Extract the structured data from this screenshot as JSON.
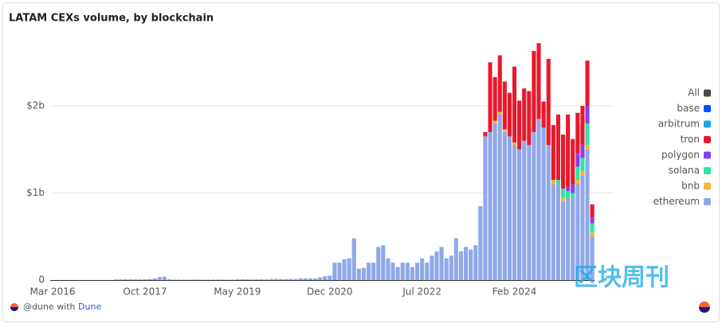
{
  "chart_data": {
    "type": "bar",
    "stacked": true,
    "title": "LATAM CEXs volume, by blockchain",
    "x": [
      "2016-03",
      "2016-04",
      "2016-05",
      "2016-06",
      "2016-07",
      "2016-08",
      "2016-09",
      "2016-10",
      "2016-11",
      "2016-12",
      "2017-01",
      "2017-02",
      "2017-03",
      "2017-04",
      "2017-05",
      "2017-06",
      "2017-07",
      "2017-08",
      "2017-09",
      "2017-10",
      "2017-11",
      "2017-12",
      "2018-01",
      "2018-02",
      "2018-03",
      "2018-04",
      "2018-05",
      "2018-06",
      "2018-07",
      "2018-08",
      "2018-09",
      "2018-10",
      "2018-11",
      "2018-12",
      "2019-01",
      "2019-02",
      "2019-03",
      "2019-04",
      "2019-05",
      "2019-06",
      "2019-07",
      "2019-08",
      "2019-09",
      "2019-10",
      "2019-11",
      "2019-12",
      "2020-01",
      "2020-02",
      "2020-03",
      "2020-04",
      "2020-05",
      "2020-06",
      "2020-07",
      "2020-08",
      "2020-09",
      "2020-10",
      "2020-11",
      "2020-12",
      "2021-01",
      "2021-02",
      "2021-03",
      "2021-04",
      "2021-05",
      "2021-06",
      "2021-07",
      "2021-08",
      "2021-09",
      "2021-10",
      "2021-11",
      "2021-12",
      "2022-01",
      "2022-02",
      "2022-03",
      "2022-04",
      "2022-05",
      "2022-06",
      "2022-07",
      "2022-08",
      "2022-09",
      "2022-10",
      "2022-11",
      "2022-12",
      "2023-01",
      "2023-02",
      "2023-03",
      "2023-04",
      "2023-05",
      "2023-06",
      "2023-07",
      "2023-08",
      "2023-09",
      "2023-10",
      "2023-11",
      "2023-12",
      "2024-01",
      "2024-02",
      "2024-03",
      "2024-04",
      "2024-05",
      "2024-06",
      "2024-07",
      "2024-08",
      "2024-09",
      "2024-10",
      "2024-11",
      "2024-12",
      "2025-01",
      "2025-02",
      "2025-03",
      "2025-04",
      "2025-05",
      "2025-06"
    ],
    "xticks": [
      {
        "value": "2016-03",
        "label": "Mar 2016"
      },
      {
        "value": "2017-10",
        "label": "Oct 2017"
      },
      {
        "value": "2019-05",
        "label": "May 2019"
      },
      {
        "value": "2020-12",
        "label": "Dec 2020"
      },
      {
        "value": "2022-07",
        "label": "Jul 2022"
      },
      {
        "value": "2024-02",
        "label": "Feb 2024"
      }
    ],
    "ylim": [
      0,
      2850000000.0
    ],
    "yticks": [
      0,
      {
        "value": 1000000000.0,
        "label": "$1b"
      },
      {
        "value": 2000000000.0,
        "label": "$2b"
      }
    ],
    "grid": true,
    "legend_position": "right",
    "legend_all": {
      "name": "All",
      "color": "#4a4a4a"
    },
    "series": [
      {
        "name": "ethereum",
        "color": "#8fa8ea",
        "values": [
          1000000.0,
          1000000.0,
          1000000.0,
          1000000.0,
          1000000.0,
          1000000.0,
          1000000.0,
          1000000.0,
          1000000.0,
          1000000.0,
          1000000.0,
          1000000.0,
          1000000.0,
          8000000.0,
          8000000.0,
          8000000.0,
          8000000.0,
          8000000.0,
          8000000.0,
          10000000.0,
          12000000.0,
          20000000.0,
          35000000.0,
          40000000.0,
          10000000.0,
          5000000.0,
          5000000.0,
          5000000.0,
          5000000.0,
          5000000.0,
          5000000.0,
          5000000.0,
          5000000.0,
          5000000.0,
          5000000.0,
          5000000.0,
          5000000.0,
          5000000.0,
          8000000.0,
          8000000.0,
          8000000.0,
          8000000.0,
          8000000.0,
          8000000.0,
          8000000.0,
          12000000.0,
          12000000.0,
          12000000.0,
          12000000.0,
          12000000.0,
          12000000.0,
          20000000.0,
          20000000.0,
          20000000.0,
          20000000.0,
          30000000.0,
          45000000.0,
          50000000.0,
          200000000.0,
          200000000.0,
          240000000.0,
          250000000.0,
          480000000.0,
          130000000.0,
          140000000.0,
          200000000.0,
          200000000.0,
          380000000.0,
          400000000.0,
          250000000.0,
          200000000.0,
          150000000.0,
          200000000.0,
          200000000.0,
          150000000.0,
          200000000.0,
          250000000.0,
          200000000.0,
          280000000.0,
          330000000.0,
          380000000.0,
          250000000.0,
          280000000.0,
          480000000.0,
          330000000.0,
          380000000.0,
          350000000.0,
          400000000.0,
          850000000.0,
          1650000000.0,
          1700000000.0,
          1800000000.0,
          1900000000.0,
          1700000000.0,
          1650000000.0,
          1550000000.0,
          1500000000.0,
          1600000000.0,
          1550000000.0,
          1700000000.0,
          1850000000.0,
          1750000000.0,
          1550000000.0,
          1100000000.0,
          1100000000.0,
          900000000.0,
          950000000.0,
          950000000.0,
          1100000000.0,
          1200000000.0,
          1500000000.0,
          500000000.0
        ]
      },
      {
        "name": "bnb",
        "color": "#f2b636",
        "values": [
          0,
          0,
          0,
          0,
          0,
          0,
          0,
          0,
          0,
          0,
          0,
          0,
          0,
          0,
          0,
          0,
          0,
          0,
          0,
          0,
          0,
          0,
          0,
          0,
          0,
          0,
          0,
          0,
          0,
          0,
          0,
          0,
          0,
          0,
          0,
          0,
          0,
          0,
          0,
          0,
          0,
          0,
          0,
          0,
          0,
          0,
          0,
          0,
          0,
          0,
          0,
          0,
          0,
          0,
          0,
          0,
          0,
          0,
          0,
          0,
          0,
          0,
          0,
          0,
          0,
          0,
          0,
          0,
          0,
          0,
          0,
          0,
          0,
          0,
          0,
          0,
          0,
          0,
          0,
          0,
          0,
          0,
          0,
          0,
          0,
          0,
          0,
          0,
          0,
          0,
          0,
          30000000.0,
          30000000.0,
          30000000.0,
          0,
          30000000.0,
          0,
          0,
          0,
          0,
          0,
          0,
          0,
          50000000.0,
          0,
          50000000.0,
          0,
          0,
          50000000.0,
          50000000.0,
          50000000.0,
          50000000.0
        ]
      },
      {
        "name": "solana",
        "color": "#2ee6a0",
        "values": [
          0,
          0,
          0,
          0,
          0,
          0,
          0,
          0,
          0,
          0,
          0,
          0,
          0,
          0,
          0,
          0,
          0,
          0,
          0,
          0,
          0,
          0,
          0,
          0,
          0,
          0,
          0,
          0,
          0,
          0,
          0,
          0,
          0,
          0,
          0,
          0,
          0,
          0,
          0,
          0,
          0,
          0,
          0,
          0,
          0,
          0,
          0,
          0,
          0,
          0,
          0,
          0,
          0,
          0,
          0,
          0,
          0,
          0,
          0,
          0,
          0,
          0,
          0,
          0,
          0,
          0,
          0,
          0,
          0,
          0,
          0,
          0,
          0,
          0,
          0,
          0,
          0,
          0,
          0,
          0,
          0,
          0,
          0,
          0,
          0,
          0,
          0,
          0,
          0,
          0,
          0,
          0,
          0,
          0,
          0,
          0,
          0,
          0,
          0,
          0,
          0,
          0,
          0,
          0,
          50000000.0,
          100000000.0,
          70000000.0,
          50000000.0,
          150000000.0,
          150000000.0,
          250000000.0,
          100000000.0
        ]
      },
      {
        "name": "polygon",
        "color": "#8a3ef0",
        "values": [
          0,
          0,
          0,
          0,
          0,
          0,
          0,
          0,
          0,
          0,
          0,
          0,
          0,
          0,
          0,
          0,
          0,
          0,
          0,
          0,
          0,
          0,
          0,
          0,
          0,
          0,
          0,
          0,
          0,
          0,
          0,
          0,
          0,
          0,
          0,
          0,
          0,
          0,
          0,
          0,
          0,
          0,
          0,
          0,
          0,
          0,
          0,
          0,
          0,
          0,
          0,
          0,
          0,
          0,
          0,
          0,
          0,
          0,
          0,
          0,
          0,
          0,
          0,
          0,
          0,
          0,
          0,
          0,
          0,
          0,
          0,
          0,
          0,
          0,
          0,
          0,
          0,
          0,
          0,
          0,
          0,
          0,
          0,
          0,
          0,
          0,
          0,
          0,
          0,
          0,
          0,
          0,
          0,
          0,
          0,
          0,
          0,
          0,
          0,
          0,
          0,
          0,
          0,
          0,
          0,
          0,
          50000000.0,
          100000000.0,
          150000000.0,
          150000000.0,
          200000000.0,
          70000000.0
        ]
      },
      {
        "name": "tron",
        "color": "#e8192c",
        "values": [
          0,
          0,
          0,
          0,
          0,
          0,
          0,
          0,
          0,
          0,
          0,
          0,
          0,
          0,
          0,
          0,
          0,
          0,
          0,
          0,
          0,
          0,
          0,
          0,
          0,
          0,
          0,
          0,
          0,
          0,
          0,
          0,
          0,
          0,
          0,
          0,
          0,
          0,
          0,
          0,
          0,
          0,
          0,
          0,
          0,
          0,
          0,
          0,
          0,
          0,
          0,
          0,
          0,
          0,
          0,
          0,
          0,
          0,
          0,
          0,
          0,
          0,
          0,
          0,
          0,
          0,
          0,
          0,
          0,
          0,
          0,
          0,
          0,
          0,
          0,
          0,
          0,
          0,
          0,
          0,
          0,
          0,
          0,
          0,
          0,
          0,
          0,
          0,
          0,
          50000000.0,
          800000000.0,
          500000000.0,
          650000000.0,
          550000000.0,
          500000000.0,
          870000000.0,
          560000000.0,
          600000000.0,
          620000000.0,
          930000000.0,
          870000000.0,
          300000000.0,
          990000000.0,
          630000000.0,
          750000000.0,
          620000000.0,
          830000000.0,
          520000000.0,
          470000000.0,
          450000000.0,
          520000000.0,
          150000000.0
        ]
      },
      {
        "name": "arbitrum",
        "color": "#1ea7e8",
        "values": [
          0,
          0,
          0,
          0,
          0,
          0,
          0,
          0,
          0,
          0,
          0,
          0,
          0,
          0,
          0,
          0,
          0,
          0,
          0,
          0,
          0,
          0,
          0,
          0,
          0,
          0,
          0,
          0,
          0,
          0,
          0,
          0,
          0,
          0,
          0,
          0,
          0,
          0,
          0,
          0,
          0,
          0,
          0,
          0,
          0,
          0,
          0,
          0,
          0,
          0,
          0,
          0,
          0,
          0,
          0,
          0,
          0,
          0,
          0,
          0,
          0,
          0,
          0,
          0,
          0,
          0,
          0,
          0,
          0,
          0,
          0,
          0,
          0,
          0,
          0,
          0,
          0,
          0,
          0,
          0,
          0,
          0,
          0,
          0,
          0,
          0,
          0,
          0,
          0,
          0,
          0,
          0,
          0,
          0,
          0,
          0,
          0,
          0,
          0,
          0,
          0,
          0,
          0,
          0,
          0,
          0,
          0,
          0,
          0,
          0,
          0,
          0
        ]
      },
      {
        "name": "base",
        "color": "#0052ff",
        "values": [
          0,
          0,
          0,
          0,
          0,
          0,
          0,
          0,
          0,
          0,
          0,
          0,
          0,
          0,
          0,
          0,
          0,
          0,
          0,
          0,
          0,
          0,
          0,
          0,
          0,
          0,
          0,
          0,
          0,
          0,
          0,
          0,
          0,
          0,
          0,
          0,
          0,
          0,
          0,
          0,
          0,
          0,
          0,
          0,
          0,
          0,
          0,
          0,
          0,
          0,
          0,
          0,
          0,
          0,
          0,
          0,
          0,
          0,
          0,
          0,
          0,
          0,
          0,
          0,
          0,
          0,
          0,
          0,
          0,
          0,
          0,
          0,
          0,
          0,
          0,
          0,
          0,
          0,
          0,
          0,
          0,
          0,
          0,
          0,
          0,
          0,
          0,
          0,
          0,
          0,
          0,
          0,
          0,
          0,
          0,
          0,
          0,
          0,
          0,
          0,
          0,
          0,
          0,
          0,
          0,
          0,
          0,
          0,
          0,
          0,
          0,
          0
        ]
      }
    ]
  },
  "footer": {
    "prefix": "@dune with",
    "link": "Dune"
  },
  "watermark": "区块周刊"
}
